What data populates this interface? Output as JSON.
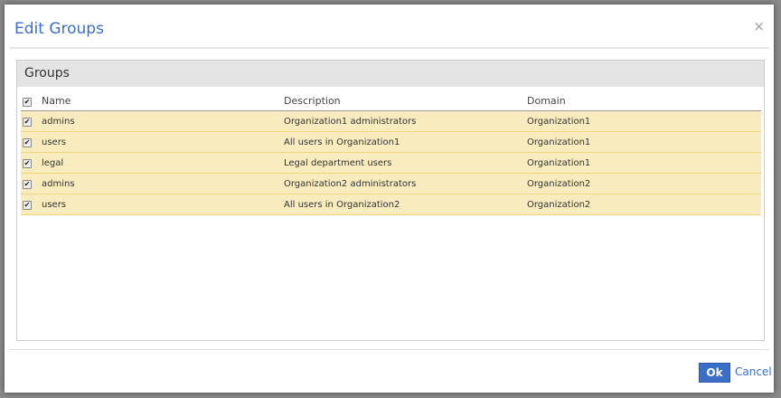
{
  "dialog": {
    "title": "Edit Groups",
    "close_label": "×",
    "ok_label": "Ok",
    "cancel_label": "Cancel"
  },
  "panel": {
    "title": "Groups"
  },
  "columns": [
    "Name",
    "Description",
    "Domain"
  ],
  "rows": [
    {
      "name": "admins",
      "description": "Organization1 administrators",
      "domain": "Organization1",
      "checked": true
    },
    {
      "name": "users",
      "description": "All users in Organization1",
      "domain": "Organization1",
      "checked": true
    },
    {
      "name": "legal",
      "description": "Legal department users",
      "domain": "Organization1",
      "checked": true
    },
    {
      "name": "admins",
      "description": "Organization2 administrators",
      "domain": "Organization2",
      "checked": true
    },
    {
      "name": "users",
      "description": "All users in Organization2",
      "domain": "Organization2",
      "checked": true
    }
  ],
  "colors": {
    "accent": "#3a6fc9",
    "row_highlight": "#f8ebbd"
  }
}
